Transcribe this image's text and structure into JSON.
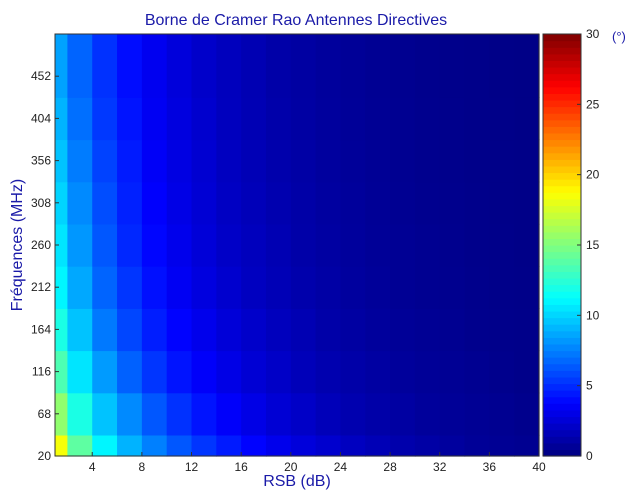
{
  "chart_data": {
    "type": "heatmap",
    "title": "Borne de Cramer Rao Antennes Directives",
    "xlabel": "RSB (dB)",
    "ylabel": "Fréquences (MHz)",
    "x_ticks": [
      4,
      8,
      12,
      16,
      20,
      24,
      28,
      32,
      36,
      40
    ],
    "y_ticks": [
      20,
      68,
      116,
      164,
      212,
      260,
      308,
      356,
      404,
      452
    ],
    "xlim": [
      1,
      40
    ],
    "ylim": [
      20,
      500
    ],
    "colorbar": {
      "ticks": [
        0,
        5,
        10,
        15,
        20,
        25,
        30
      ],
      "range": [
        0,
        30
      ],
      "unit": "(°)",
      "colormap": "jet"
    },
    "x": [
      1,
      3,
      5,
      7,
      9,
      11,
      13,
      15,
      17,
      19,
      21,
      23,
      25,
      27,
      29,
      31,
      33,
      35,
      37,
      39
    ],
    "y": [
      20,
      68,
      116,
      164,
      212,
      260,
      308,
      356,
      404,
      452
    ],
    "z": [
      [
        18.5,
        14.0,
        11.0,
        9.0,
        7.5,
        6.3,
        5.3,
        4.5,
        3.8,
        3.2,
        2.7,
        2.3,
        1.9,
        1.6,
        1.3,
        1.1,
        0.9,
        0.7,
        0.6,
        0.5
      ],
      [
        15.5,
        12.0,
        9.5,
        7.8,
        6.3,
        5.2,
        4.3,
        3.6,
        3.0,
        2.5,
        2.1,
        1.7,
        1.4,
        1.2,
        1.0,
        0.8,
        0.7,
        0.6,
        0.5,
        0.4
      ],
      [
        13.5,
        10.5,
        8.3,
        6.6,
        5.3,
        4.3,
        3.6,
        3.0,
        2.5,
        2.1,
        1.7,
        1.4,
        1.2,
        1.0,
        0.8,
        0.7,
        0.6,
        0.5,
        0.4,
        0.3
      ],
      [
        12.0,
        9.5,
        7.3,
        5.8,
        4.6,
        3.8,
        3.2,
        2.6,
        2.2,
        1.8,
        1.5,
        1.2,
        1.0,
        0.85,
        0.7,
        0.6,
        0.5,
        0.4,
        0.35,
        0.3
      ],
      [
        11.0,
        8.7,
        6.7,
        5.3,
        4.2,
        3.4,
        2.8,
        2.3,
        1.9,
        1.6,
        1.3,
        1.1,
        0.9,
        0.75,
        0.6,
        0.5,
        0.45,
        0.38,
        0.32,
        0.28
      ],
      [
        10.5,
        8.2,
        6.3,
        4.9,
        3.9,
        3.2,
        2.6,
        2.1,
        1.8,
        1.5,
        1.2,
        1.0,
        0.85,
        0.7,
        0.6,
        0.5,
        0.42,
        0.35,
        0.3,
        0.26
      ],
      [
        10.0,
        7.8,
        6.0,
        4.7,
        3.7,
        3.0,
        2.5,
        2.0,
        1.7,
        1.4,
        1.15,
        0.95,
        0.8,
        0.66,
        0.55,
        0.46,
        0.4,
        0.34,
        0.29,
        0.25
      ],
      [
        9.5,
        7.4,
        5.7,
        4.5,
        3.5,
        2.9,
        2.4,
        1.9,
        1.6,
        1.3,
        1.1,
        0.9,
        0.75,
        0.63,
        0.52,
        0.44,
        0.38,
        0.32,
        0.28,
        0.24
      ],
      [
        9.0,
        7.0,
        5.4,
        4.3,
        3.4,
        2.8,
        2.3,
        1.85,
        1.55,
        1.25,
        1.05,
        0.86,
        0.72,
        0.6,
        0.5,
        0.42,
        0.36,
        0.31,
        0.27,
        0.23
      ],
      [
        8.5,
        6.7,
        5.2,
        4.1,
        3.3,
        2.7,
        2.2,
        1.8,
        1.5,
        1.2,
        1.0,
        0.83,
        0.7,
        0.58,
        0.48,
        0.41,
        0.35,
        0.3,
        0.26,
        0.22
      ]
    ]
  }
}
